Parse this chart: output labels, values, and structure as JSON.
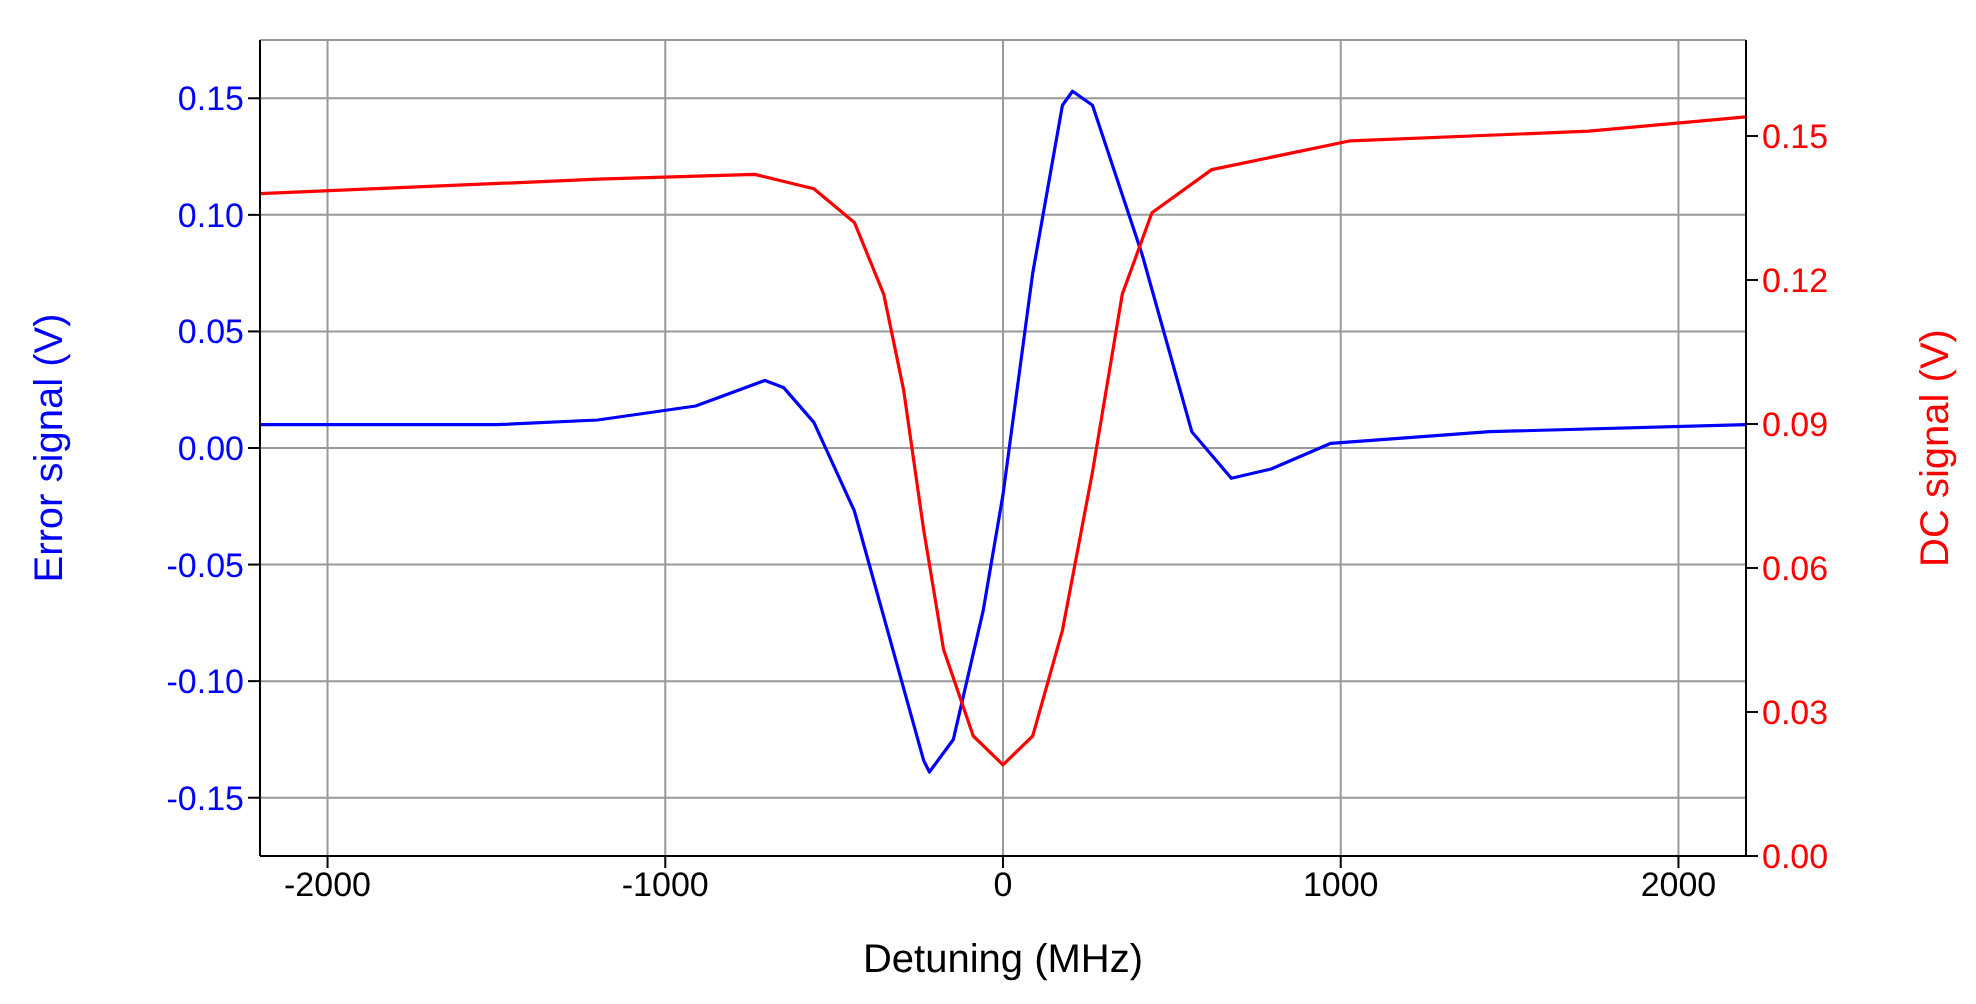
{
  "chart_data": {
    "type": "line",
    "xlabel": "Detuning (MHz)",
    "ylabel": "Error signal (V)",
    "y2label": "DC signal (V)",
    "xlim": [
      -2200,
      2200
    ],
    "xticks": [
      -2000,
      -1000,
      0,
      1000,
      2000
    ],
    "ylim": [
      -0.175,
      0.175
    ],
    "yticks": [
      -0.15,
      {
        "value": -0.1,
        "label": "-0.10"
      },
      -0.05,
      {
        "value": 0,
        "label": "0.00"
      },
      0.05,
      {
        "value": 0.1,
        "label": "0.10"
      },
      0.15
    ],
    "y2lim": [
      0,
      0.17
    ],
    "y2ticks": [
      {
        "value": 0,
        "label": "0.00"
      },
      0.03,
      0.06,
      0.09,
      0.12,
      0.15
    ],
    "grid": true,
    "marker": "none",
    "line_style": "solid",
    "series": [
      {
        "color": "#0000ff",
        "x": [
          -2200,
          -1500,
          -1200,
          -910,
          -705,
          -650,
          -560,
          -440,
          -325,
          -235,
          -218,
          -147,
          -59,
          0,
          88,
          176,
          206,
          265,
          412,
          559,
          676,
          794,
          971,
          1441,
          2200
        ],
        "values": [
          0.01,
          0.01,
          0.012,
          0.018,
          0.029,
          0.026,
          0.011,
          -0.027,
          -0.087,
          -0.134,
          -0.139,
          -0.125,
          -0.07,
          -0.02,
          0.075,
          0.147,
          0.153,
          0.147,
          0.083,
          0.007,
          -0.013,
          -0.009,
          0.002,
          0.007,
          0.01
        ]
      },
      {
        "color": "#ff0000",
        "axis": "y2",
        "x": [
          -2200,
          -1200,
          -735,
          -560,
          -440,
          -353,
          -294,
          -235,
          -176,
          -88,
          0,
          88,
          176,
          265,
          353,
          441,
          618,
          1029,
          1735,
          2200
        ],
        "values": [
          0.138,
          0.141,
          0.142,
          0.139,
          0.132,
          0.117,
          0.097,
          0.068,
          0.043,
          0.025,
          0.019,
          0.025,
          0.047,
          0.08,
          0.117,
          0.134,
          0.143,
          0.149,
          0.151,
          0.154
        ]
      }
    ]
  }
}
